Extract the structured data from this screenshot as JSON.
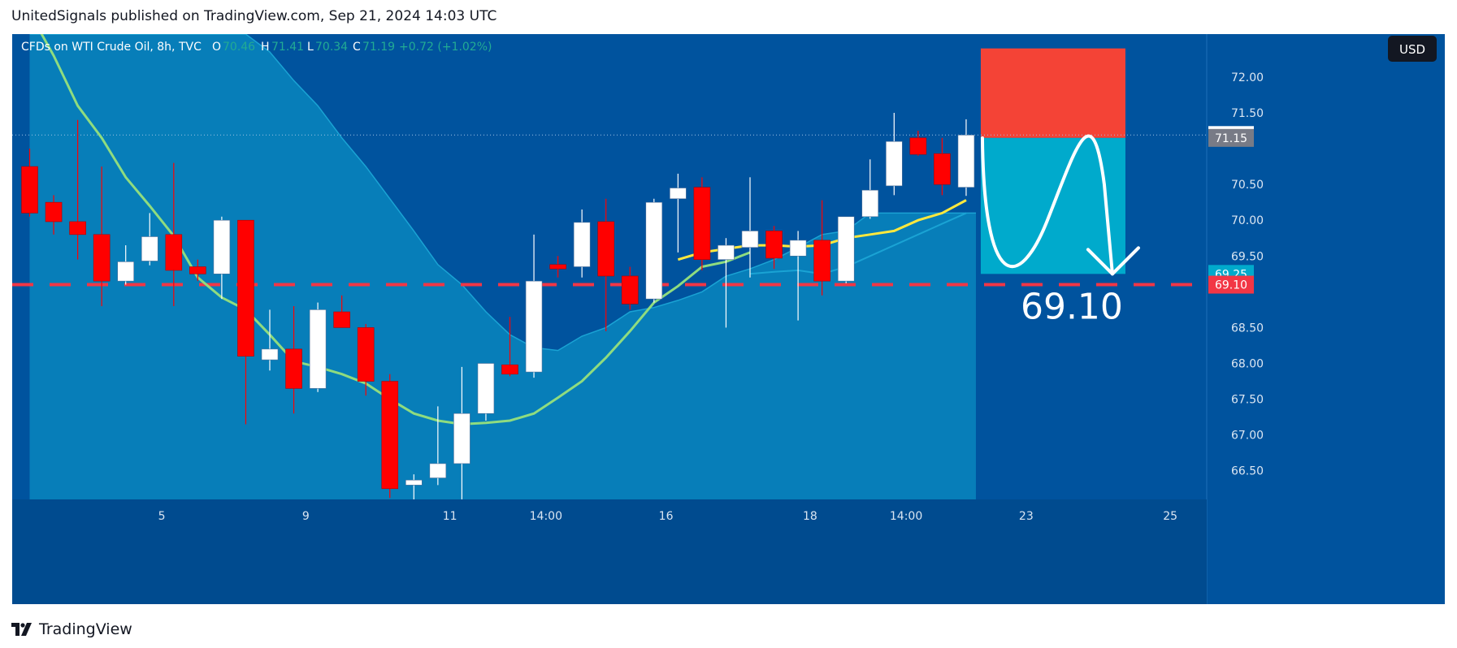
{
  "header": {
    "publisher_line": "UnitedSignals published on TradingView.com, Sep 21, 2024 14:03 UTC"
  },
  "footer": {
    "logo_icon": "tradingview-logo-icon",
    "brand": "TradingView"
  },
  "legend": {
    "symbol": "CFDs on WTI Crude Oil, 8h, TVC",
    "o_label": "O",
    "o_value": "70.46",
    "h_label": "H",
    "h_value": "71.41",
    "l_label": "L",
    "l_value": "70.34",
    "c_label": "C",
    "c_value": "71.19",
    "change": "+0.72 (+1.02%)"
  },
  "currency_button": "USD",
  "colors": {
    "background": "#00539e",
    "area_fill": "#0a8cc2",
    "bull": "#ffffff",
    "bear": "#ff0000",
    "ma_green": "#8fdc7f",
    "ma_yellow": "#ffe83d",
    "target_dash": "#f23645",
    "stop_zone": "#f44336",
    "target_zone": "#00aacc",
    "price_line_dots": "#9ec3e6"
  },
  "chart_data": {
    "type": "candlestick",
    "title": "CFDs on WTI Crude Oil, 8h, TVC",
    "ylim": [
      66.1,
      72.6
    ],
    "y_ticks": [
      "72.00",
      "71.50",
      "70.50",
      "70.00",
      "69.50",
      "68.50",
      "68.00",
      "67.50",
      "67.00",
      "66.50"
    ],
    "x_ticks": [
      {
        "label": "5",
        "bar": 5.5
      },
      {
        "label": "9",
        "bar": 11.5
      },
      {
        "label": "11",
        "bar": 17.5
      },
      {
        "label": "14:00",
        "bar": 21.5
      },
      {
        "label": "16",
        "bar": 26.5
      },
      {
        "label": "18",
        "bar": 32.5
      },
      {
        "label": "14:00",
        "bar": 36.5
      },
      {
        "label": "23",
        "bar": 41.5
      },
      {
        "label": "25",
        "bar": 47.5
      }
    ],
    "candles": [
      {
        "o": 70.75,
        "h": 71.0,
        "l": 70.05,
        "c": 70.1
      },
      {
        "o": 70.25,
        "h": 70.35,
        "l": 69.8,
        "c": 69.98
      },
      {
        "o": 69.98,
        "h": 71.4,
        "l": 69.45,
        "c": 69.8
      },
      {
        "o": 69.8,
        "h": 70.75,
        "l": 68.8,
        "c": 69.15
      },
      {
        "o": 69.15,
        "h": 69.65,
        "l": 69.1,
        "c": 69.42
      },
      {
        "o": 69.43,
        "h": 70.1,
        "l": 69.37,
        "c": 69.77
      },
      {
        "o": 69.8,
        "h": 70.8,
        "l": 68.8,
        "c": 69.3
      },
      {
        "o": 69.35,
        "h": 69.45,
        "l": 69.15,
        "c": 69.25
      },
      {
        "o": 69.25,
        "h": 70.05,
        "l": 68.9,
        "c": 70.0
      },
      {
        "o": 70.0,
        "h": 70.0,
        "l": 67.15,
        "c": 68.1
      },
      {
        "o": 68.05,
        "h": 68.75,
        "l": 67.9,
        "c": 68.2
      },
      {
        "o": 68.2,
        "h": 68.8,
        "l": 67.3,
        "c": 67.65
      },
      {
        "o": 67.65,
        "h": 68.85,
        "l": 67.6,
        "c": 68.75
      },
      {
        "o": 68.72,
        "h": 68.95,
        "l": 68.5,
        "c": 68.5
      },
      {
        "o": 68.5,
        "h": 68.55,
        "l": 67.55,
        "c": 67.75
      },
      {
        "o": 67.75,
        "h": 67.85,
        "l": 66.12,
        "c": 66.25
      },
      {
        "o": 66.3,
        "h": 66.45,
        "l": 66.1,
        "c": 66.37
      },
      {
        "o": 66.4,
        "h": 67.4,
        "l": 66.3,
        "c": 66.6
      },
      {
        "o": 66.6,
        "h": 67.95,
        "l": 66.1,
        "c": 67.3
      },
      {
        "o": 67.3,
        "h": 68.0,
        "l": 67.2,
        "c": 68.0
      },
      {
        "o": 67.98,
        "h": 68.65,
        "l": 67.82,
        "c": 67.85
      },
      {
        "o": 67.88,
        "h": 69.8,
        "l": 67.8,
        "c": 69.15
      },
      {
        "o": 69.38,
        "h": 69.5,
        "l": 69.2,
        "c": 69.32
      },
      {
        "o": 69.35,
        "h": 70.15,
        "l": 69.2,
        "c": 69.97
      },
      {
        "o": 69.98,
        "h": 70.3,
        "l": 68.45,
        "c": 69.22
      },
      {
        "o": 69.22,
        "h": 69.35,
        "l": 68.75,
        "c": 68.83
      },
      {
        "o": 68.9,
        "h": 70.3,
        "l": 68.85,
        "c": 70.25
      },
      {
        "o": 70.3,
        "h": 70.65,
        "l": 69.55,
        "c": 70.45
      },
      {
        "o": 70.46,
        "h": 70.6,
        "l": 69.3,
        "c": 69.45
      },
      {
        "o": 69.45,
        "h": 69.75,
        "l": 68.5,
        "c": 69.65
      },
      {
        "o": 69.62,
        "h": 70.6,
        "l": 69.2,
        "c": 69.85
      },
      {
        "o": 69.85,
        "h": 69.92,
        "l": 69.32,
        "c": 69.47
      },
      {
        "o": 69.5,
        "h": 69.85,
        "l": 68.6,
        "c": 69.72
      },
      {
        "o": 69.72,
        "h": 70.28,
        "l": 68.95,
        "c": 69.15
      },
      {
        "o": 69.15,
        "h": 70.05,
        "l": 69.12,
        "c": 70.05
      },
      {
        "o": 70.05,
        "h": 70.85,
        "l": 70.02,
        "c": 70.42
      },
      {
        "o": 70.48,
        "h": 71.5,
        "l": 70.35,
        "c": 71.1
      },
      {
        "o": 71.15,
        "h": 71.25,
        "l": 70.9,
        "c": 70.92
      },
      {
        "o": 70.93,
        "h": 71.15,
        "l": 70.35,
        "c": 70.5
      },
      {
        "o": 70.46,
        "h": 71.41,
        "l": 70.34,
        "c": 71.19
      }
    ],
    "ma_green": [
      72.9,
      72.3,
      71.6,
      71.15,
      70.6,
      70.2,
      69.78,
      69.2,
      68.92,
      68.75,
      68.4,
      68.03,
      67.95,
      67.85,
      67.72,
      67.5,
      67.3,
      67.2,
      67.15,
      67.17,
      67.2,
      67.3,
      67.52,
      67.75,
      68.08,
      68.45,
      68.85,
      69.08,
      69.35,
      69.42,
      69.55
    ],
    "ma_green_start_bar": 0,
    "ma_yellow": [
      69.45,
      69.55,
      69.6,
      69.65,
      69.65,
      69.63,
      69.65,
      69.75,
      69.8,
      69.85,
      70.0,
      70.1,
      70.28
    ],
    "ma_yellow_start_bar": 27,
    "band_upper": [
      73.0,
      72.7,
      72.35,
      71.95,
      71.6,
      71.15,
      70.75,
      70.3,
      69.85,
      69.38,
      69.1,
      68.72,
      68.4,
      68.22,
      68.18,
      68.38,
      68.5,
      68.72,
      68.78,
      68.88,
      69.0,
      69.22,
      69.32,
      69.45,
      69.62,
      69.8,
      69.85,
      70.1
    ],
    "band_upper_start_bar": 8,
    "band_lower": [
      69.25,
      69.28,
      69.3,
      69.25,
      69.35,
      69.5,
      69.65,
      69.8,
      69.95,
      70.1
    ],
    "band_lower_start_bar": 30,
    "target_level": "69.10",
    "current_price": "71.19",
    "prev_close": "71.15",
    "target_zone_top": "71.15",
    "target_zone_bottom": "69.25",
    "stop_zone_top": "72.4",
    "target_label": "69.10"
  }
}
